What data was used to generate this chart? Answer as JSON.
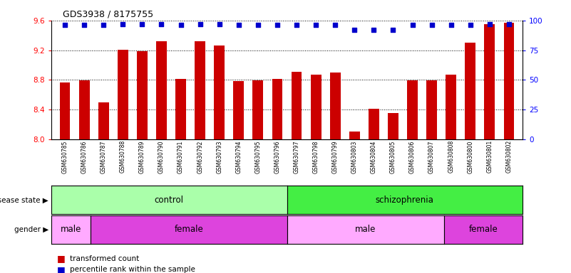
{
  "title": "GDS3938 / 8175755",
  "samples": [
    "GSM630785",
    "GSM630786",
    "GSM630787",
    "GSM630788",
    "GSM630789",
    "GSM630790",
    "GSM630791",
    "GSM630792",
    "GSM630793",
    "GSM630794",
    "GSM630795",
    "GSM630796",
    "GSM630797",
    "GSM630798",
    "GSM630799",
    "GSM630803",
    "GSM630804",
    "GSM630805",
    "GSM630806",
    "GSM630807",
    "GSM630808",
    "GSM630800",
    "GSM630801",
    "GSM630802"
  ],
  "bar_values": [
    8.76,
    8.79,
    8.5,
    9.21,
    9.19,
    9.32,
    8.81,
    9.32,
    9.26,
    8.78,
    8.79,
    8.81,
    8.91,
    8.87,
    8.9,
    8.1,
    8.41,
    8.35,
    8.79,
    8.79,
    8.87,
    9.3,
    9.55,
    9.57
  ],
  "percentile_values": [
    96,
    96,
    96,
    97,
    97,
    97,
    96,
    97,
    97,
    96,
    96,
    96,
    96,
    96,
    96,
    92,
    92,
    92,
    96,
    96,
    96,
    96,
    97,
    97
  ],
  "bar_color": "#cc0000",
  "dot_color": "#0000cc",
  "ylim_left": [
    8.0,
    9.6
  ],
  "ylim_right": [
    0,
    100
  ],
  "yticks_left": [
    8.0,
    8.4,
    8.8,
    9.2,
    9.6
  ],
  "yticks_right": [
    0,
    25,
    50,
    75,
    100
  ],
  "disease_state_groups": [
    {
      "label": "control",
      "start": 0,
      "end": 12,
      "color": "#aaffaa"
    },
    {
      "label": "schizophrenia",
      "start": 12,
      "end": 24,
      "color": "#44ee44"
    }
  ],
  "gender_groups": [
    {
      "label": "male",
      "start": 0,
      "end": 2,
      "color": "#ffaaff"
    },
    {
      "label": "female",
      "start": 2,
      "end": 12,
      "color": "#dd44dd"
    },
    {
      "label": "male",
      "start": 12,
      "end": 20,
      "color": "#ffaaff"
    },
    {
      "label": "female",
      "start": 20,
      "end": 24,
      "color": "#dd44dd"
    }
  ],
  "legend_items": [
    {
      "label": "transformed count",
      "color": "#cc0000"
    },
    {
      "label": "percentile rank within the sample",
      "color": "#0000cc"
    }
  ]
}
